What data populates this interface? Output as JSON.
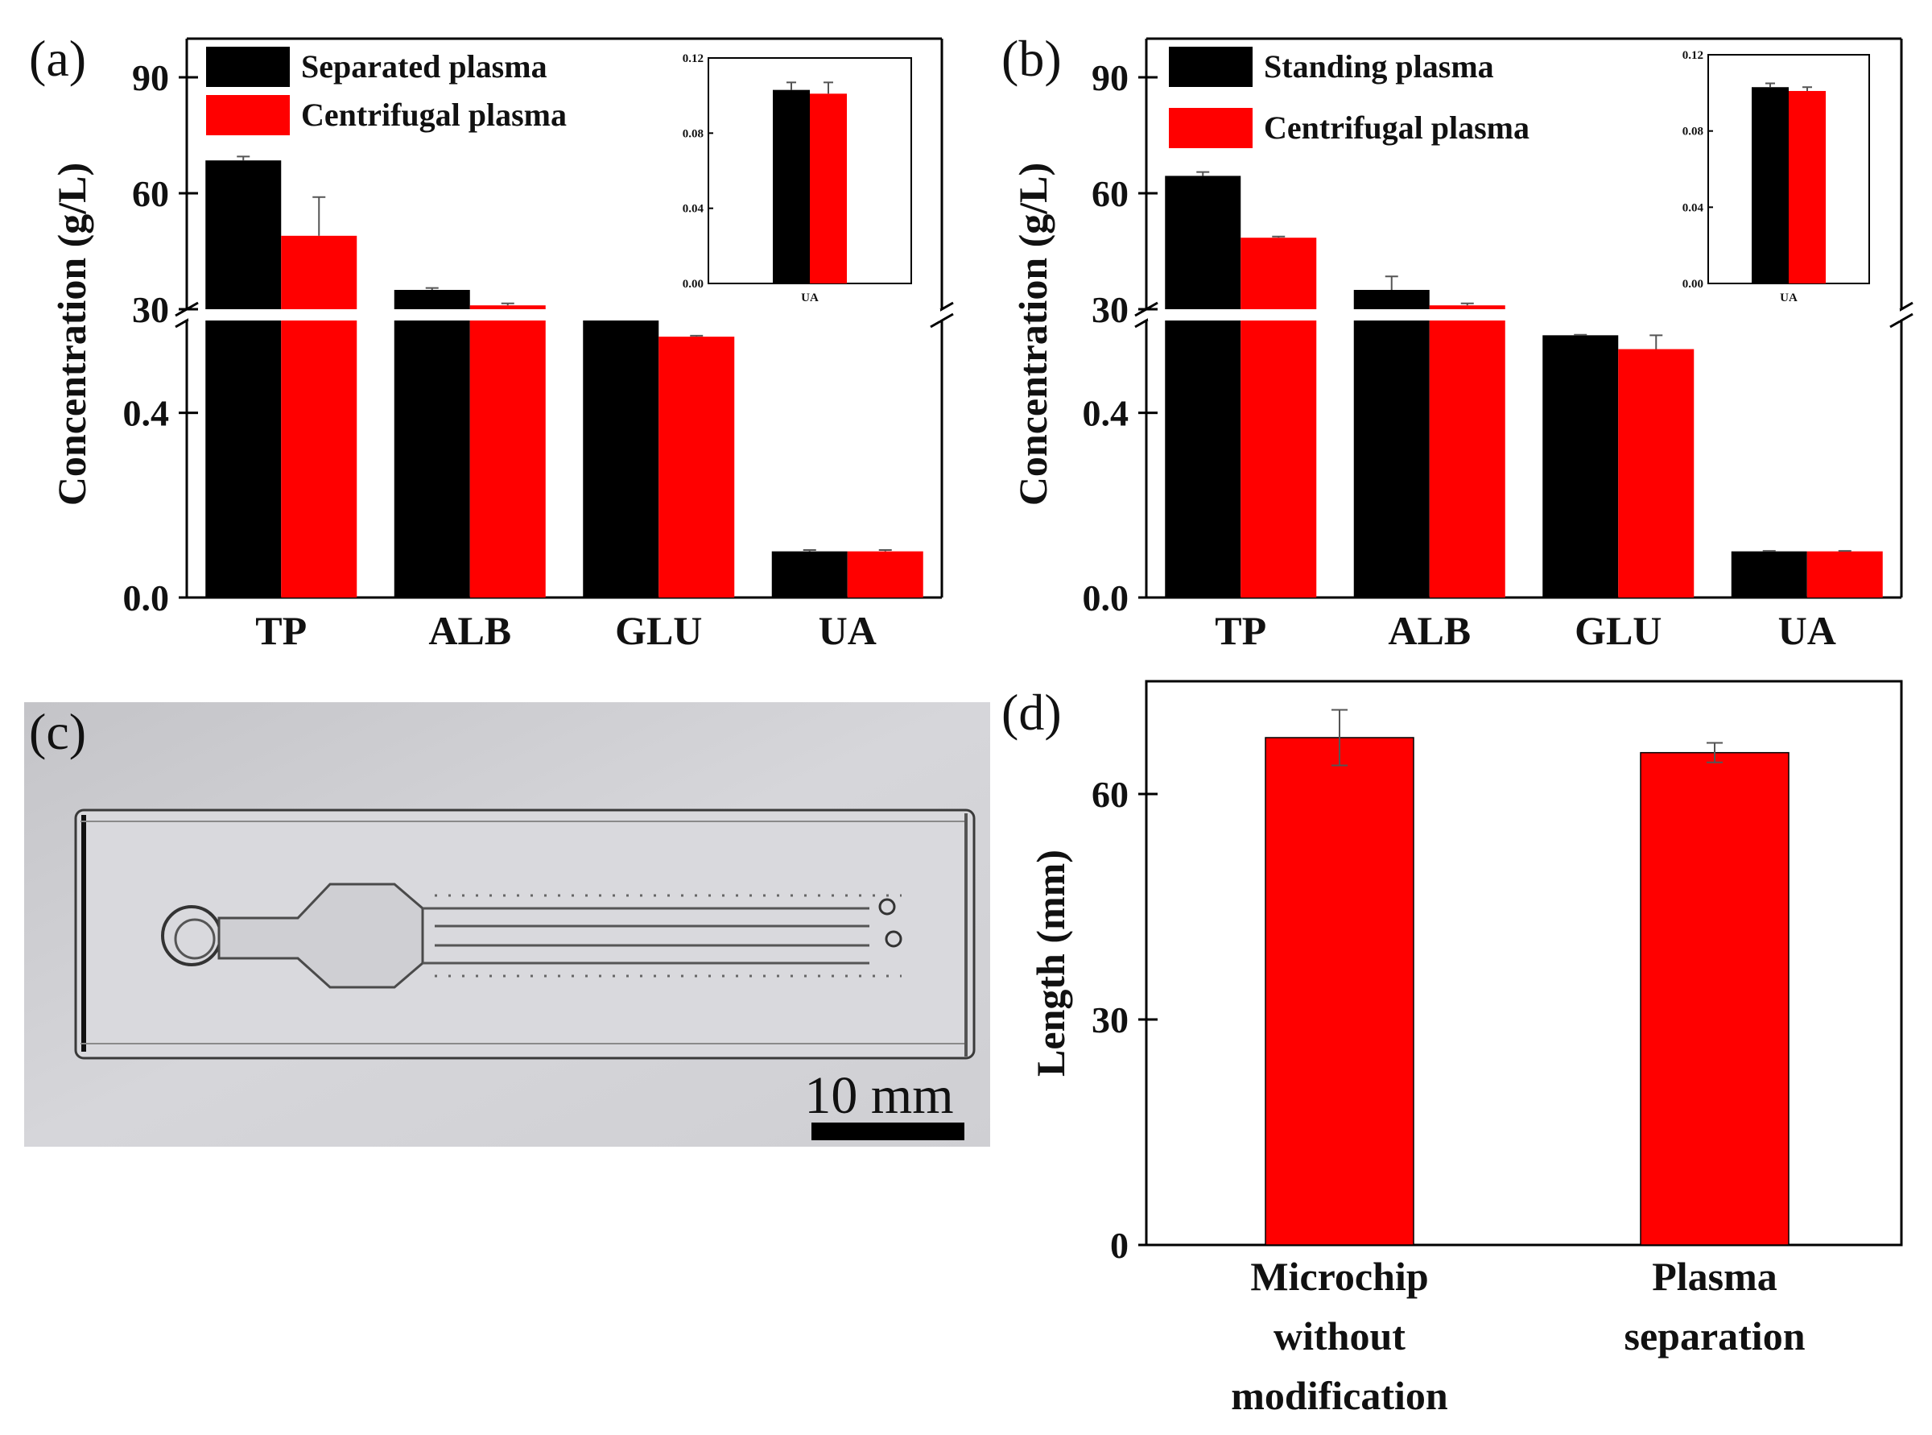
{
  "chart_data": [
    {
      "panel": "(a)",
      "type": "bar",
      "ylabel": "Concentration (g/L)",
      "categories": [
        "TP",
        "ALB",
        "GLU",
        "UA"
      ],
      "axis_break": "between 0.6 and 30",
      "lower_ylim": [
        0,
        0.6
      ],
      "lower_ticks": [
        "0.0",
        "0.4"
      ],
      "upper_ylim": [
        30,
        100
      ],
      "upper_ticks": [
        "30",
        "60",
        "90"
      ],
      "series": [
        {
          "name": "Separated plasma",
          "color": "#000000",
          "values": [
            68.5,
            35.0,
            0.6,
            0.1
          ],
          "errors": [
            1.0,
            0.5,
            0.0,
            0.003
          ]
        },
        {
          "name": "Centrifugal plasma",
          "color": "#ff0000",
          "values": [
            49.0,
            31.0,
            0.565,
            0.1
          ],
          "errors": [
            10.0,
            0.5,
            0.002,
            0.003
          ]
        }
      ],
      "inset": {
        "category": "UA",
        "ylim": [
          0,
          0.12
        ],
        "ticks": [
          "0.00",
          "0.04",
          "0.08",
          "0.12"
        ],
        "values": [
          0.103,
          0.101
        ],
        "errors": [
          0.004,
          0.006
        ]
      }
    },
    {
      "panel": "(b)",
      "type": "bar",
      "ylabel": "Concentration (g/L)",
      "categories": [
        "TP",
        "ALB",
        "GLU",
        "UA"
      ],
      "axis_break": "between 0.6 and 30",
      "lower_ylim": [
        0,
        0.6
      ],
      "lower_ticks": [
        "0.0",
        "0.4"
      ],
      "upper_ylim": [
        30,
        100
      ],
      "upper_ticks": [
        "30",
        "60",
        "90"
      ],
      "series": [
        {
          "name": "Standing plasma",
          "color": "#000000",
          "values": [
            64.5,
            35.0,
            0.568,
            0.1
          ],
          "errors": [
            1.0,
            3.5,
            0.001,
            0.001
          ]
        },
        {
          "name": "Centrifugal plasma",
          "color": "#ff0000",
          "values": [
            48.5,
            31.0,
            0.538,
            0.1
          ],
          "errors": [
            0.3,
            0.5,
            0.03,
            0.001
          ]
        }
      ],
      "inset": {
        "category": "UA",
        "ylim": [
          0,
          0.12
        ],
        "ticks": [
          "0.00",
          "0.04",
          "0.08",
          "0.12"
        ],
        "values": [
          0.103,
          0.101
        ],
        "errors": [
          0.002,
          0.002
        ]
      }
    },
    {
      "panel": "(d)",
      "type": "bar",
      "ylabel": "Length (mm)",
      "categories": [
        [
          "Microchip",
          "without",
          "modification"
        ],
        [
          "Plasma",
          "separation"
        ]
      ],
      "ylim": [
        0,
        75
      ],
      "ticks": [
        "0",
        "30",
        "60"
      ],
      "series": [
        {
          "name": "Length",
          "color": "#ff0000",
          "values": [
            67.5,
            65.5
          ],
          "errors": [
            3.7,
            1.3
          ]
        }
      ]
    }
  ],
  "photo": {
    "panel": "(c)",
    "scale_bar_label": "10 mm"
  }
}
